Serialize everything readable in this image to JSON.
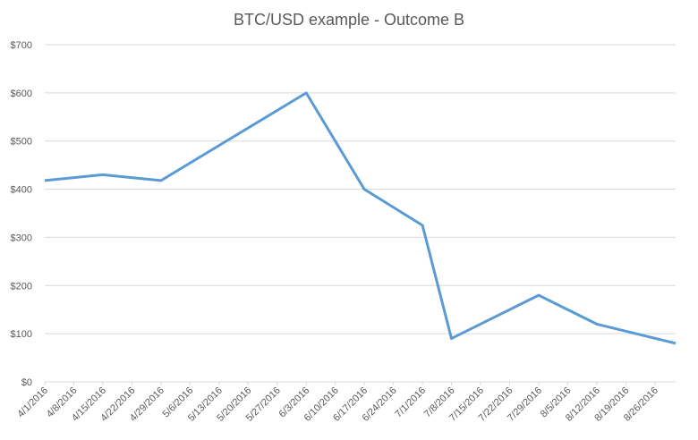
{
  "chart_data": {
    "type": "line",
    "title": "BTC/USD example - Outcome B",
    "xlabel": "",
    "ylabel": "",
    "ylim": [
      0,
      700
    ],
    "yticks": [
      {
        "value": 0,
        "label": "$0"
      },
      {
        "value": 100,
        "label": "$100"
      },
      {
        "value": 200,
        "label": "$200"
      },
      {
        "value": 300,
        "label": "$300"
      },
      {
        "value": 400,
        "label": "$400"
      },
      {
        "value": 500,
        "label": "$500"
      },
      {
        "value": 600,
        "label": "$600"
      },
      {
        "value": 700,
        "label": "$700"
      }
    ],
    "categories": [
      "4/1/2016",
      "4/8/2016",
      "4/15/2016",
      "4/22/2016",
      "4/29/2016",
      "5/6/2016",
      "5/13/2016",
      "5/20/2016",
      "5/27/2016",
      "6/3/2016",
      "6/10/2016",
      "6/17/2016",
      "6/24/2016",
      "7/1/2016",
      "7/8/2016",
      "7/15/2016",
      "7/22/2016",
      "7/29/2016",
      "8/5/2016",
      "8/12/2016",
      "8/19/2016",
      "8/26/2016"
    ],
    "grid": true,
    "legend": "none",
    "series": [
      {
        "color": "#5b9bd5",
        "points": [
          {
            "x": "4/1/2016",
            "y": 418
          },
          {
            "x": "4/15/2016",
            "y": 430
          },
          {
            "x": "4/29/2016",
            "y": 418
          },
          {
            "x": "6/3/2016",
            "y": 600
          },
          {
            "x": "6/17/2016",
            "y": 400
          },
          {
            "x": "7/1/2016",
            "y": 325
          },
          {
            "x": "7/8/2016",
            "y": 90
          },
          {
            "x": "7/29/2016",
            "y": 180
          },
          {
            "x": "8/12/2016",
            "y": 120
          },
          {
            "x": "8/31/2016",
            "y": 80
          }
        ]
      }
    ]
  }
}
